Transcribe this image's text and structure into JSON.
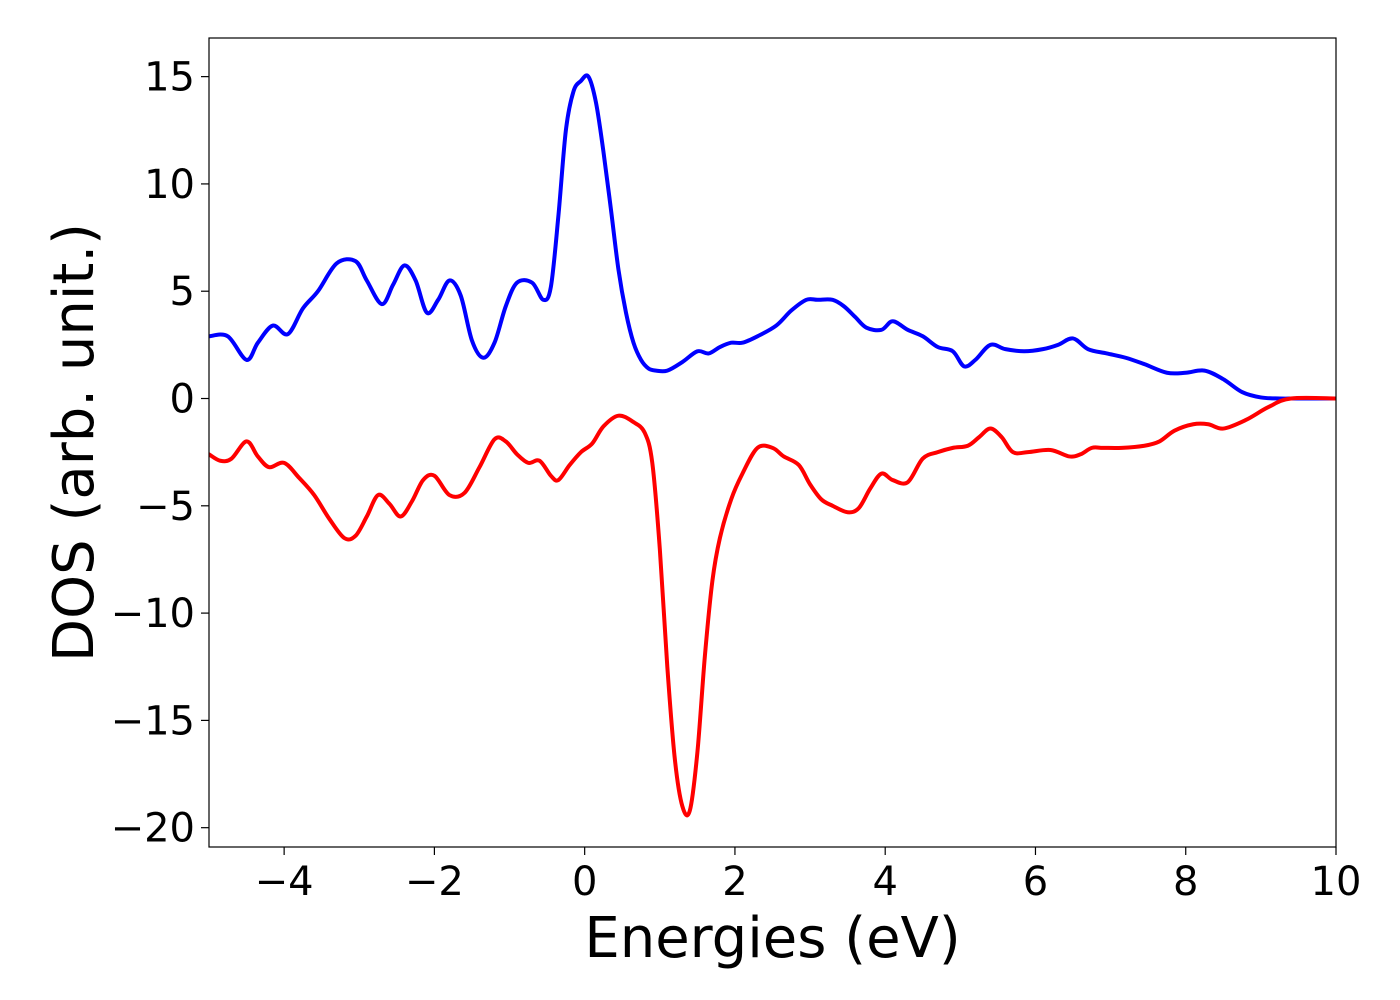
{
  "chart_data": {
    "type": "line",
    "title": "",
    "xlabel": "Energies (eV)",
    "ylabel": "DOS (arb. unit.)",
    "xlim": [
      -5,
      10
    ],
    "ylim": [
      -20.9,
      16.8
    ],
    "xticks": [
      -4,
      -2,
      0,
      2,
      4,
      6,
      8,
      10
    ],
    "xtick_labels": [
      "−4",
      "−2",
      "0",
      "2",
      "4",
      "6",
      "8",
      "10"
    ],
    "yticks": [
      -20,
      -15,
      -10,
      -5,
      0,
      5,
      10,
      15
    ],
    "ytick_labels": [
      "−20",
      "−15",
      "−10",
      "−5",
      "0",
      "5",
      "10",
      "15"
    ],
    "grid": false,
    "legend": "none",
    "series": [
      {
        "color": "#0000ff",
        "x": [
          -5.0,
          -4.75,
          -4.5,
          -4.35,
          -4.15,
          -3.95,
          -3.75,
          -3.55,
          -3.3,
          -3.05,
          -2.9,
          -2.7,
          -2.55,
          -2.4,
          -2.25,
          -2.1,
          -1.95,
          -1.8,
          -1.65,
          -1.5,
          -1.35,
          -1.2,
          -1.05,
          -0.9,
          -0.7,
          -0.55,
          -0.45,
          -0.35,
          -0.25,
          -0.15,
          -0.05,
          0.05,
          0.15,
          0.25,
          0.35,
          0.45,
          0.55,
          0.65,
          0.75,
          0.85,
          0.95,
          1.1,
          1.3,
          1.5,
          1.65,
          1.8,
          1.95,
          2.1,
          2.3,
          2.55,
          2.75,
          2.95,
          3.1,
          3.3,
          3.45,
          3.6,
          3.75,
          3.95,
          4.1,
          4.3,
          4.5,
          4.7,
          4.9,
          5.05,
          5.2,
          5.4,
          5.6,
          5.85,
          6.1,
          6.3,
          6.5,
          6.7,
          6.95,
          7.2,
          7.45,
          7.75,
          8.0,
          8.25,
          8.5,
          8.75,
          9.0,
          9.25,
          9.5,
          10.0
        ],
        "y": [
          2.9,
          2.9,
          1.8,
          2.6,
          3.4,
          3.0,
          4.2,
          5.0,
          6.3,
          6.4,
          5.5,
          4.4,
          5.3,
          6.2,
          5.5,
          4.0,
          4.6,
          5.5,
          4.8,
          2.7,
          1.9,
          2.6,
          4.3,
          5.4,
          5.4,
          4.6,
          5.2,
          8.5,
          12.5,
          14.3,
          14.8,
          15.0,
          13.8,
          11.5,
          8.8,
          6.0,
          4.0,
          2.6,
          1.8,
          1.4,
          1.3,
          1.3,
          1.7,
          2.2,
          2.1,
          2.4,
          2.6,
          2.6,
          2.9,
          3.4,
          4.1,
          4.6,
          4.6,
          4.6,
          4.3,
          3.8,
          3.3,
          3.2,
          3.6,
          3.2,
          2.9,
          2.4,
          2.2,
          1.5,
          1.8,
          2.5,
          2.3,
          2.2,
          2.3,
          2.5,
          2.8,
          2.3,
          2.1,
          1.9,
          1.6,
          1.2,
          1.2,
          1.3,
          0.9,
          0.3,
          0.05,
          0.0,
          0.0,
          0.0
        ]
      },
      {
        "color": "#ff0000",
        "x": [
          -5.0,
          -4.85,
          -4.7,
          -4.5,
          -4.35,
          -4.2,
          -4.0,
          -3.8,
          -3.6,
          -3.4,
          -3.2,
          -3.05,
          -2.9,
          -2.75,
          -2.6,
          -2.45,
          -2.3,
          -2.15,
          -2.0,
          -1.8,
          -1.6,
          -1.4,
          -1.2,
          -1.05,
          -0.9,
          -0.75,
          -0.6,
          -0.45,
          -0.35,
          -0.2,
          -0.05,
          0.1,
          0.25,
          0.45,
          0.65,
          0.8,
          0.9,
          1.0,
          1.1,
          1.2,
          1.3,
          1.4,
          1.5,
          1.6,
          1.7,
          1.8,
          1.95,
          2.1,
          2.3,
          2.5,
          2.65,
          2.85,
          3.0,
          3.15,
          3.3,
          3.5,
          3.65,
          3.8,
          3.95,
          4.1,
          4.3,
          4.5,
          4.7,
          4.9,
          5.1,
          5.25,
          5.4,
          5.55,
          5.7,
          5.9,
          6.2,
          6.45,
          6.6,
          6.75,
          6.9,
          7.15,
          7.45,
          7.65,
          7.85,
          8.1,
          8.3,
          8.5,
          8.8,
          9.1,
          9.4,
          10.0
        ],
        "y": [
          -2.6,
          -2.9,
          -2.8,
          -2.0,
          -2.7,
          -3.2,
          -3.0,
          -3.7,
          -4.5,
          -5.6,
          -6.5,
          -6.4,
          -5.5,
          -4.5,
          -4.9,
          -5.5,
          -4.8,
          -3.8,
          -3.6,
          -4.5,
          -4.4,
          -3.2,
          -1.9,
          -2.0,
          -2.6,
          -3.0,
          -2.9,
          -3.6,
          -3.8,
          -3.1,
          -2.5,
          -2.1,
          -1.3,
          -0.8,
          -1.1,
          -1.6,
          -3.0,
          -7.0,
          -12.5,
          -16.8,
          -19.0,
          -19.2,
          -16.5,
          -12.0,
          -8.5,
          -6.5,
          -4.7,
          -3.5,
          -2.3,
          -2.3,
          -2.7,
          -3.1,
          -4.0,
          -4.7,
          -5.0,
          -5.3,
          -5.1,
          -4.2,
          -3.5,
          -3.8,
          -3.9,
          -2.8,
          -2.5,
          -2.3,
          -2.2,
          -1.8,
          -1.4,
          -1.8,
          -2.5,
          -2.5,
          -2.4,
          -2.7,
          -2.6,
          -2.3,
          -2.3,
          -2.3,
          -2.2,
          -2.0,
          -1.5,
          -1.2,
          -1.2,
          -1.4,
          -1.0,
          -0.4,
          0.0,
          0.0
        ]
      }
    ]
  }
}
